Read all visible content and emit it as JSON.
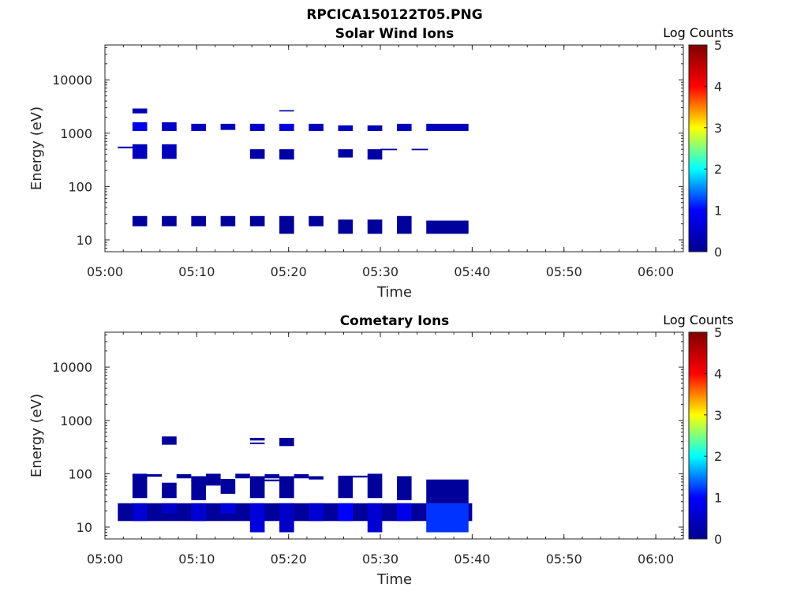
{
  "figure_title": "RPCICA150122T05.PNG",
  "colors": {
    "background": "#ffffff",
    "axes": "#262626",
    "colormap": [
      "#00008f",
      "#0000ff",
      "#00ffff",
      "#ffff00",
      "#ff0000",
      "#800000"
    ]
  },
  "chart_data": [
    {
      "type": "heatmap",
      "title": "Solar Wind Ions",
      "xlabel": "Time",
      "ylabel": "Energy (eV)",
      "y_scale": "log",
      "ylim": [
        6,
        45000
      ],
      "xlim": [
        "05:00",
        "06:03"
      ],
      "x_ticks": [
        "05:00",
        "05:10",
        "05:20",
        "05:30",
        "05:40",
        "05:50",
        "06:00"
      ],
      "y_ticks": [
        10,
        100,
        1000,
        10000
      ],
      "y_tick_labels": [
        "10",
        "100",
        "1000",
        "10000"
      ],
      "colorbar": {
        "label": "Log Counts",
        "range": [
          0,
          5
        ],
        "ticks": [
          "0",
          "1",
          "2",
          "3",
          "4",
          "5"
        ]
      },
      "cells_note": "each cell: [t_start_min, t_end_min, E_low_eV, E_high_eV, log_counts]",
      "cells": [
        [
          1.4,
          3.2,
          520,
          560,
          0.2
        ],
        [
          3.0,
          4.6,
          2350,
          2900,
          0.3
        ],
        [
          3.0,
          4.6,
          1100,
          1600,
          0.8
        ],
        [
          3.0,
          4.6,
          330,
          620,
          0.4
        ],
        [
          3.0,
          4.6,
          18,
          28,
          0.1
        ],
        [
          6.2,
          7.8,
          1100,
          1600,
          0.5
        ],
        [
          6.2,
          7.8,
          330,
          620,
          0.4
        ],
        [
          6.2,
          7.8,
          18,
          28,
          0.1
        ],
        [
          9.4,
          11.0,
          1100,
          1500,
          0.4
        ],
        [
          9.4,
          11.0,
          18,
          28,
          0.1
        ],
        [
          12.6,
          14.2,
          1150,
          1500,
          0.4
        ],
        [
          12.6,
          14.2,
          18,
          28,
          0.1
        ],
        [
          15.8,
          17.4,
          1100,
          1500,
          0.5
        ],
        [
          15.8,
          17.4,
          330,
          500,
          0.2
        ],
        [
          15.8,
          17.4,
          18,
          28,
          0.1
        ],
        [
          19.0,
          20.6,
          2550,
          2700,
          0.3
        ],
        [
          19.0,
          20.6,
          1100,
          1500,
          0.7
        ],
        [
          19.0,
          20.6,
          320,
          500,
          0.2
        ],
        [
          19.0,
          20.6,
          13,
          28,
          0.1
        ],
        [
          22.2,
          23.8,
          1100,
          1500,
          0.4
        ],
        [
          22.2,
          23.8,
          18,
          28,
          0.1
        ],
        [
          25.4,
          27.0,
          1100,
          1400,
          0.4
        ],
        [
          25.4,
          27.0,
          350,
          500,
          0.2
        ],
        [
          25.4,
          27.0,
          13,
          24,
          0.1
        ],
        [
          28.6,
          30.2,
          1100,
          1400,
          0.3
        ],
        [
          28.6,
          30.2,
          320,
          500,
          0.2
        ],
        [
          28.6,
          30.2,
          13,
          24,
          0.1
        ],
        [
          30.0,
          31.8,
          480,
          510,
          0.2
        ],
        [
          31.8,
          33.4,
          1100,
          1500,
          0.4
        ],
        [
          31.8,
          33.4,
          13,
          28,
          0.1
        ],
        [
          33.4,
          35.2,
          480,
          510,
          0.2
        ],
        [
          35.0,
          39.6,
          1100,
          1500,
          0.4
        ],
        [
          35.0,
          39.6,
          13,
          23,
          0.1
        ]
      ]
    },
    {
      "type": "heatmap",
      "title": "Cometary Ions",
      "xlabel": "Time",
      "ylabel": "Energy (eV)",
      "y_scale": "log",
      "ylim": [
        6,
        45000
      ],
      "xlim": [
        "05:00",
        "06:03"
      ],
      "x_ticks": [
        "05:00",
        "05:10",
        "05:20",
        "05:30",
        "05:40",
        "05:50",
        "06:00"
      ],
      "y_ticks": [
        10,
        100,
        1000,
        10000
      ],
      "y_tick_labels": [
        "10",
        "100",
        "1000",
        "10000"
      ],
      "colorbar": {
        "label": "Log Counts",
        "range": [
          0,
          5
        ],
        "ticks": [
          "0",
          "1",
          "2",
          "3",
          "4",
          "5"
        ]
      },
      "cells_note": "each cell: [t_start_min, t_end_min, E_low_eV, E_high_eV, log_counts]",
      "cells": [
        [
          1.4,
          40.0,
          13,
          28,
          0.1
        ],
        [
          3.0,
          4.6,
          13,
          28,
          0.6
        ],
        [
          6.2,
          7.8,
          18,
          28,
          0.5
        ],
        [
          9.4,
          11.0,
          13,
          28,
          0.6
        ],
        [
          12.6,
          14.2,
          18,
          28,
          0.7
        ],
        [
          15.8,
          17.4,
          8,
          28,
          0.7
        ],
        [
          19.0,
          20.6,
          8,
          28,
          0.5
        ],
        [
          22.2,
          23.8,
          13,
          28,
          0.6
        ],
        [
          25.4,
          27.0,
          13,
          28,
          1.0
        ],
        [
          28.6,
          30.2,
          8,
          28,
          0.6
        ],
        [
          31.8,
          33.4,
          13,
          28,
          0.8
        ],
        [
          35.0,
          39.6,
          8,
          28,
          1.2
        ],
        [
          3.0,
          4.6,
          35,
          100,
          0.1
        ],
        [
          3.0,
          6.2,
          88,
          98,
          0.2
        ],
        [
          6.2,
          7.8,
          35,
          68,
          0.1
        ],
        [
          6.2,
          7.8,
          350,
          500,
          0.1
        ],
        [
          7.8,
          9.4,
          82,
          98,
          0.1
        ],
        [
          9.4,
          11.0,
          32,
          90,
          0.1
        ],
        [
          9.4,
          11.0,
          72,
          78,
          0.2
        ],
        [
          11.0,
          12.6,
          60,
          100,
          0.1
        ],
        [
          12.6,
          14.2,
          42,
          80,
          0.1
        ],
        [
          14.2,
          15.8,
          82,
          100,
          0.1
        ],
        [
          15.8,
          17.4,
          35,
          90,
          0.1
        ],
        [
          15.8,
          17.4,
          420,
          470,
          0.2
        ],
        [
          15.8,
          17.4,
          360,
          385,
          0.2
        ],
        [
          17.4,
          19.0,
          82,
          98,
          0.2
        ],
        [
          17.4,
          19.0,
          72,
          78,
          0.1
        ],
        [
          19.0,
          20.6,
          35,
          90,
          0.1
        ],
        [
          19.0,
          20.6,
          330,
          470,
          0.1
        ],
        [
          20.6,
          22.2,
          82,
          98,
          0.2
        ],
        [
          22.2,
          23.8,
          78,
          90,
          0.1
        ],
        [
          25.4,
          27.0,
          35,
          92,
          0.1
        ],
        [
          27.0,
          28.6,
          85,
          92,
          0.1
        ],
        [
          28.6,
          30.2,
          35,
          100,
          0.1
        ],
        [
          31.8,
          33.4,
          32,
          90,
          0.1
        ],
        [
          35.0,
          39.6,
          28,
          78,
          0.1
        ]
      ]
    }
  ]
}
